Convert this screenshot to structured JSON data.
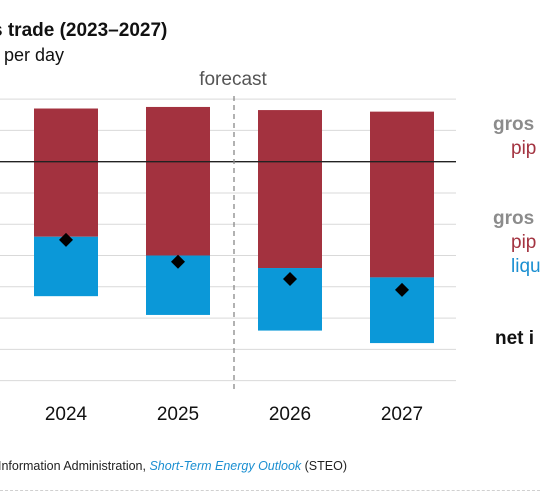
{
  "title": "s trade (2023–2027)",
  "subtitle": "t per day",
  "forecast_label": "forecast",
  "legend": {
    "gross_1": "gros",
    "pipe_1": "pip",
    "gross_2": "gros",
    "pipe_2": "pip",
    "lng": "liqu",
    "net": "net i"
  },
  "source": {
    "prefix": "Information Administration, ",
    "link": "Short-Term Energy Outlook",
    "suffix": " (STEO)"
  },
  "colors": {
    "pipeline": "#a3323f",
    "lng": "#0b98d8",
    "marker": "#000000",
    "grid": "#d9d9d9",
    "zero_line": "#222222",
    "forecast_line": "#888888"
  },
  "chart_data": {
    "type": "bar",
    "categories": [
      "2024",
      "2025",
      "2026",
      "2027"
    ],
    "forecast_start": "2026",
    "ylim": [
      -7.3,
      2.1
    ],
    "series": [
      {
        "values": [
          1.7,
          1.75,
          1.65,
          1.6
        ]
      },
      {
        "values": [
          -2.4,
          -3.0,
          -3.4,
          -3.7
        ]
      },
      {
        "values": [
          -1.9,
          -1.9,
          -2.0,
          -2.1
        ]
      },
      {
        "values": [
          -2.5,
          -3.2,
          -3.75,
          -4.1
        ]
      }
    ]
  }
}
